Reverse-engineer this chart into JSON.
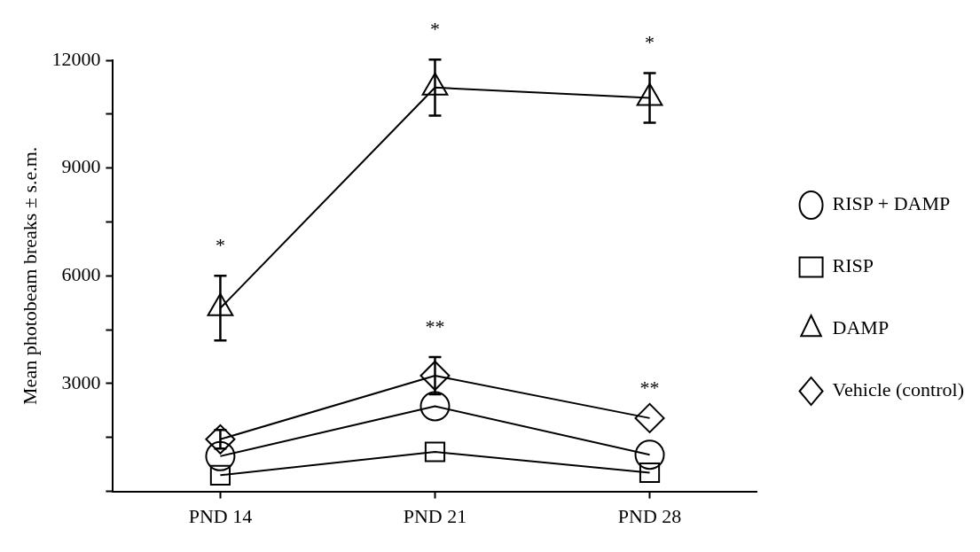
{
  "chart_data": {
    "type": "line",
    "ylabel": "Mean photobeam breaks ± s.e.m.",
    "categories": [
      "PND 14",
      "PND 21",
      "PND 28"
    ],
    "series": [
      {
        "name": "RISP + DAMP",
        "color": "#000000",
        "marker": "circle",
        "values": [
          980,
          2370,
          1020
        ]
      },
      {
        "name": "RISP",
        "color": "#000000",
        "marker": "square",
        "values": [
          450,
          1100,
          520
        ]
      },
      {
        "name": "DAMP",
        "color": "#000000",
        "marker": "triangle",
        "values": [
          5100,
          11240,
          10950
        ],
        "errors": [
          900,
          780,
          690
        ]
      },
      {
        "name": "Vehicle (control)",
        "color": "#000000",
        "marker": "diamond",
        "values": [
          1450,
          3220,
          2040
        ],
        "errors": [
          260,
          520,
          null
        ]
      }
    ],
    "ylim": [
      0,
      12000
    ],
    "yticks": [
      {
        "value": 0,
        "label": null
      },
      {
        "value": 1500,
        "label": null
      },
      3000,
      {
        "value": 4500,
        "label": null
      },
      6000,
      {
        "value": 7500,
        "label": null
      },
      9000,
      {
        "value": 10500,
        "label": null
      },
      12000
    ],
    "grid": false,
    "legend": "right",
    "line_style": "solid",
    "annotations": [
      {
        "text": "*",
        "x": "PND 14",
        "y": 6000
      },
      {
        "text": "*",
        "x": "PND 21",
        "y": 12020
      },
      {
        "text": "*",
        "x": "PND 28",
        "y": 11640
      },
      {
        "text": "**",
        "x": "PND 21",
        "y": 3740
      },
      {
        "text": "**",
        "x": "PND 28",
        "y": 2040
      }
    ]
  }
}
